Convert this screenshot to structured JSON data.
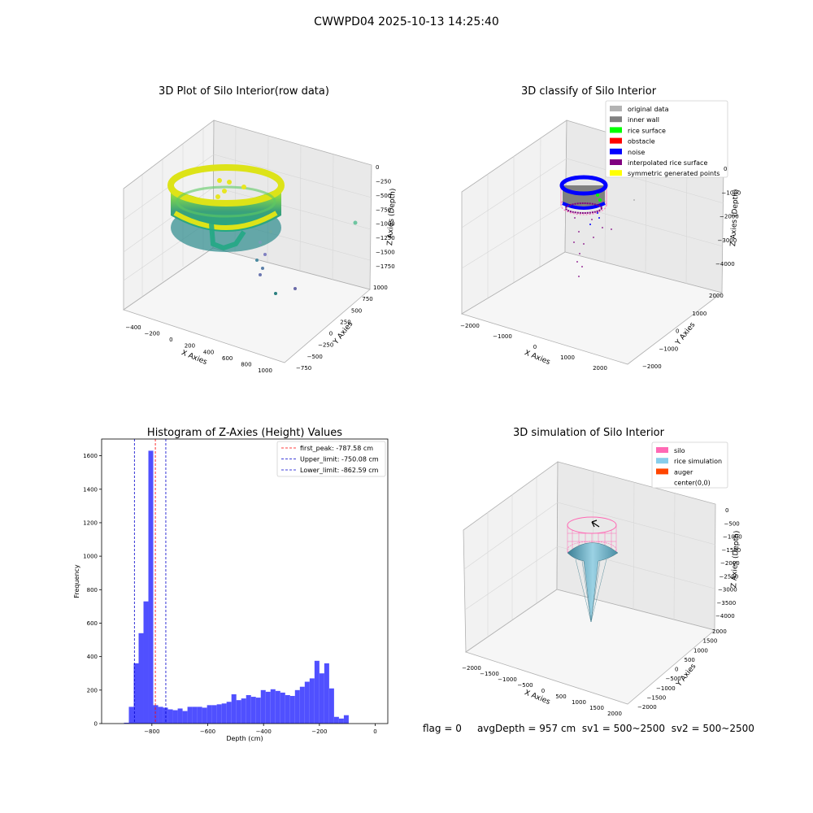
{
  "suptitle": "CWWPD04 2025-10-13 14:25:40",
  "status": {
    "flag": "flag = 0",
    "avg_depth": "avgDepth = 957 cm",
    "sv1": "sv1 = 500~2500",
    "sv2": "sv2 = 500~2500"
  },
  "chart_data": [
    {
      "type": "scatter",
      "title": "3D Plot of Silo Interior(row data)",
      "xlabel": "X Axies",
      "ylabel": "Y Axies",
      "zlabel": "Z Axies (Depth)",
      "x_ticks": [
        "−400",
        "−200",
        "0",
        "200",
        "400",
        "600",
        "800",
        "1000"
      ],
      "y_ticks": [
        "−750",
        "−500",
        "−250",
        "0",
        "250",
        "500",
        "750",
        "1000"
      ],
      "z_ticks": [
        "0",
        "−250",
        "−500",
        "−750",
        "−1000",
        "−1250",
        "−1500",
        "−1750"
      ],
      "colormap": "viridis",
      "ring_x_range": [
        -400,
        400
      ],
      "ring_depth_range": [
        -400,
        -800
      ],
      "outlier_points": [
        {
          "x": 700,
          "y": 800,
          "z": -1000
        },
        {
          "x": 500,
          "y": 300,
          "z": -1400
        },
        {
          "x": 400,
          "y": 100,
          "z": -1600
        },
        {
          "x": 350,
          "y": 0,
          "z": -1750
        }
      ]
    },
    {
      "type": "scatter",
      "title": "3D classify of Silo Interior",
      "xlabel": "X Axies",
      "ylabel": "Y Axies",
      "zlabel": "Z Axies (Depth)",
      "x_ticks": [
        "−2000",
        "−1000",
        "0",
        "1000",
        "2000"
      ],
      "y_ticks": [
        "−2000",
        "−1000",
        "0",
        "1000",
        "2000"
      ],
      "z_ticks": [
        "0",
        "−1000",
        "−2000",
        "−3000",
        "−4000"
      ],
      "legend": [
        {
          "label": "original data",
          "color": "#b3b3b3"
        },
        {
          "label": "inner wall",
          "color": "#808080"
        },
        {
          "label": "rice surface",
          "color": "#00ff00"
        },
        {
          "label": "obstacle",
          "color": "#ff0000"
        },
        {
          "label": "noise",
          "color": "#0000ff"
        },
        {
          "label": "interpolated rice surface",
          "color": "#800080"
        },
        {
          "label": "symmetric generated points",
          "color": "#ffff00"
        }
      ],
      "legend_position": "top-right"
    },
    {
      "type": "bar",
      "title": "Histogram of Z-Axies (Height) Values",
      "xlabel": "Depth (cm)",
      "ylabel": "Frequency",
      "xlim": [
        -980,
        45
      ],
      "ylim": [
        0,
        1700
      ],
      "x_ticks": [
        -800,
        -600,
        -400,
        -200,
        0
      ],
      "x_tick_labels": [
        "−800",
        "−600",
        "−400",
        "−200",
        "0"
      ],
      "y_ticks": [
        0,
        200,
        400,
        600,
        800,
        1000,
        1200,
        1400,
        1600
      ],
      "bin_start": -900,
      "bin_width": 17.5,
      "bar_color": "#5050ff",
      "values": [
        5,
        100,
        360,
        540,
        730,
        1630,
        110,
        100,
        95,
        85,
        80,
        90,
        75,
        100,
        100,
        100,
        95,
        110,
        110,
        115,
        120,
        130,
        175,
        140,
        150,
        170,
        160,
        155,
        200,
        190,
        205,
        195,
        185,
        170,
        165,
        200,
        220,
        250,
        270,
        375,
        300,
        360,
        210,
        40,
        30,
        50
      ],
      "vlines": [
        {
          "x": -787.58,
          "color": "#ff0000",
          "label": "first_peak: -787.58 cm"
        },
        {
          "x": -750.08,
          "color": "#0000cc",
          "label": "Upper_limit: -750.08 cm"
        },
        {
          "x": -862.59,
          "color": "#0000cc",
          "label": "Lower_limit: -862.59 cm"
        }
      ],
      "legend_position": "top-right"
    },
    {
      "type": "surface",
      "title": "3D simulation of Silo Interior",
      "xlabel": "X Axies",
      "ylabel": "Y Axies",
      "zlabel": "Z Axies (Depth)",
      "x_ticks": [
        "−2000",
        "−1500",
        "−1000",
        "−500",
        "0",
        "500",
        "1000",
        "1500",
        "2000"
      ],
      "y_ticks": [
        "−2000",
        "−1500",
        "−1000",
        "−500",
        "0",
        "500",
        "1000",
        "1500",
        "2000"
      ],
      "z_ticks": [
        "0",
        "−500",
        "−1000",
        "−1500",
        "−2000",
        "−2500",
        "−3000",
        "−3500",
        "−4000"
      ],
      "legend": [
        {
          "label": "silo",
          "color": "#ff69b4"
        },
        {
          "label": "rice simulation",
          "color": "#87ceeb"
        },
        {
          "label": "auger",
          "color": "#ff4500"
        },
        {
          "label": "center(0,0)",
          "color": "none"
        }
      ],
      "legend_position": "top-right"
    }
  ]
}
